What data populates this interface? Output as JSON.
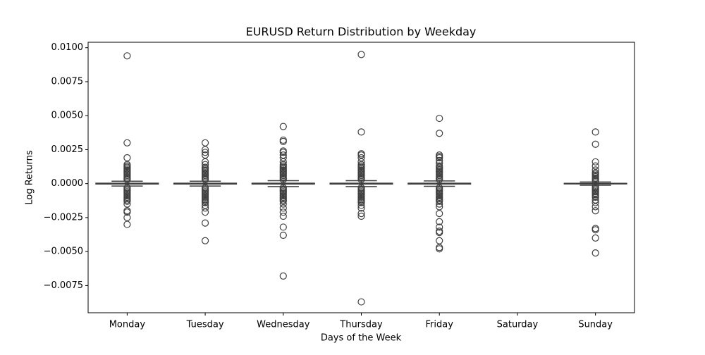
{
  "chart_data": {
    "type": "box",
    "title": "EURUSD Return Distribution by Weekday",
    "xlabel": "Days of the Week",
    "ylabel": "Log Returns",
    "color": "#3f3f3f",
    "categories": [
      "Monday",
      "Tuesday",
      "Wednesday",
      "Thursday",
      "Friday",
      "Saturday",
      "Sunday"
    ],
    "ylim": [
      -0.0095,
      0.0104
    ],
    "yticks": [
      {
        "value": 0.01,
        "label": "0.0100"
      },
      {
        "value": 0.0075,
        "label": "0.0075"
      },
      {
        "value": 0.005,
        "label": "0.0050"
      },
      {
        "value": 0.0025,
        "label": "0.0025"
      },
      {
        "value": 0,
        "label": "0.0000"
      },
      {
        "value": -0.0025,
        "label": "−0.0025"
      },
      {
        "value": -0.005,
        "label": "−0.0050"
      },
      {
        "value": -0.0075,
        "label": "−0.0075"
      }
    ],
    "boxes": [
      {
        "whislo": -0.00018,
        "q1": -3e-05,
        "med": 0,
        "q3": 3e-05,
        "whishi": 0.00018,
        "fliers": [
          0.0094,
          0.003,
          0.0019,
          0.0014,
          0.0013,
          0.0012,
          0.0011,
          0.001,
          0.0009,
          0.0008,
          0.0007,
          0.0006,
          0.0005,
          0.0004,
          0.0003,
          -0.0003,
          -0.0004,
          -0.0005,
          -0.0006,
          -0.0007,
          -0.0008,
          -0.0009,
          -0.001,
          -0.0011,
          -0.0012,
          -0.0013,
          -0.0015,
          -0.002,
          -0.0021,
          -0.0025,
          -0.003
        ]
      },
      {
        "whislo": -0.00018,
        "q1": -3e-05,
        "med": 0,
        "q3": 3e-05,
        "whishi": 0.00018,
        "fliers": [
          0.003,
          0.0025,
          0.0023,
          0.0021,
          0.0016,
          0.0014,
          0.0012,
          0.0011,
          0.001,
          0.0009,
          0.0008,
          0.0007,
          0.0006,
          0.0005,
          0.0004,
          0.0003,
          -0.0003,
          -0.0004,
          -0.0005,
          -0.0006,
          -0.0007,
          -0.0008,
          -0.0009,
          -0.001,
          -0.0011,
          -0.0012,
          -0.0013,
          -0.0014,
          -0.0016,
          -0.0018,
          -0.0021,
          -0.0029,
          -0.0042
        ]
      },
      {
        "whislo": -0.00022,
        "q1": -3e-05,
        "med": 0,
        "q3": 3e-05,
        "whishi": 0.00022,
        "fliers": [
          0.0042,
          0.0032,
          0.0031,
          0.0024,
          0.0023,
          0.0021,
          0.0019,
          0.0016,
          0.0014,
          0.0013,
          0.0012,
          0.0011,
          0.001,
          0.0009,
          0.0008,
          0.0007,
          0.0006,
          0.0005,
          0.0004,
          0.0003,
          -0.0003,
          -0.0004,
          -0.0005,
          -0.0006,
          -0.0007,
          -0.0008,
          -0.0009,
          -0.001,
          -0.0011,
          -0.0012,
          -0.0013,
          -0.0015,
          -0.0018,
          -0.0021,
          -0.0024,
          -0.0032,
          -0.0038,
          -0.0068
        ]
      },
      {
        "whislo": -0.00022,
        "q1": -3e-05,
        "med": 0,
        "q3": 3e-05,
        "whishi": 0.00022,
        "fliers": [
          0.0095,
          0.0038,
          0.0022,
          0.0021,
          0.0019,
          0.0016,
          0.0014,
          0.0013,
          0.0012,
          0.0011,
          0.001,
          0.0009,
          0.0008,
          0.0007,
          0.0006,
          0.0005,
          0.0004,
          0.0003,
          -0.0003,
          -0.0004,
          -0.0005,
          -0.0006,
          -0.0007,
          -0.0008,
          -0.0009,
          -0.001,
          -0.0011,
          -0.0012,
          -0.0013,
          -0.0014,
          -0.0016,
          -0.0018,
          -0.0022,
          -0.0024,
          -0.0087
        ]
      },
      {
        "whislo": -0.0002,
        "q1": -3e-05,
        "med": 0,
        "q3": 3e-05,
        "whishi": 0.0002,
        "fliers": [
          0.0048,
          0.0037,
          0.0021,
          0.002,
          0.0019,
          0.0017,
          0.0015,
          0.0013,
          0.0012,
          0.0011,
          0.001,
          0.0009,
          0.0008,
          0.0007,
          0.0006,
          0.0005,
          0.0004,
          0.0003,
          -0.0003,
          -0.0004,
          -0.0005,
          -0.0006,
          -0.0007,
          -0.0008,
          -0.0009,
          -0.001,
          -0.0011,
          -0.0012,
          -0.0013,
          -0.0015,
          -0.0017,
          -0.0022,
          -0.0028,
          -0.0032,
          -0.0035,
          -0.0036,
          -0.0042,
          -0.0047,
          -0.0048
        ]
      },
      null,
      {
        "whislo": -0.00012,
        "q1": -2e-05,
        "med": 0,
        "q3": 2e-05,
        "whishi": 0.00012,
        "fliers": [
          0.0038,
          0.0029,
          0.0016,
          0.0013,
          0.001,
          0.0008,
          0.0007,
          0.0006,
          0.0005,
          0.0004,
          0.0003,
          0.0002,
          -0.0002,
          -0.0003,
          -0.0004,
          -0.0005,
          -0.0006,
          -0.0007,
          -0.0008,
          -0.0009,
          -0.001,
          -0.0012,
          -0.0014,
          -0.0017,
          -0.002,
          -0.0033,
          -0.0034,
          -0.004,
          -0.0051
        ]
      }
    ]
  }
}
